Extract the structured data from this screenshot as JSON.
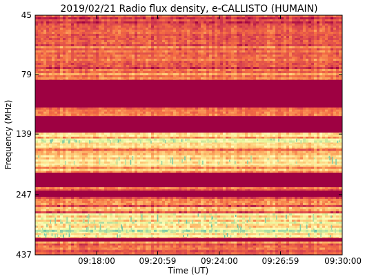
{
  "chart_data": {
    "type": "heatmap",
    "title": "2019/02/21  Radio flux density, e-CALLISTO (HUMAIN)",
    "xlabel": "Time (UT)",
    "ylabel": "Frequency (MHz)",
    "x_tick_labels": [
      "09:18:00",
      "09:20:59",
      "09:24:00",
      "09:26:59",
      "09:30:00"
    ],
    "x_tick_minutes": [
      18.0,
      20.983,
      24.0,
      26.983,
      30.0
    ],
    "xlim_minutes": [
      15.0,
      30.0
    ],
    "y_tick_labels": [
      "45",
      "79",
      "139",
      "247",
      "437"
    ],
    "y_tick_values": [
      45,
      79,
      139,
      247,
      437
    ],
    "ylim_mhz": [
      45,
      437
    ],
    "y_inverted": true,
    "y_scale": "log",
    "colormap": [
      "#9e0142",
      "#d53e4f",
      "#f46d43",
      "#fdae61",
      "#fee08b",
      "#ffffbf",
      "#e6f598",
      "#abdda4",
      "#66c2a5"
    ],
    "background_color": "#9e0142",
    "bands": [
      {
        "from_mhz": 45,
        "to_mhz": 78,
        "intensity": 0.22,
        "variability": 0.14
      },
      {
        "from_mhz": 78,
        "to_mhz": 83,
        "intensity": 0.28,
        "variability": 0.12
      },
      {
        "from_mhz": 83,
        "to_mhz": 108,
        "intensity": 0.0,
        "variability": 0.0
      },
      {
        "from_mhz": 108,
        "to_mhz": 117,
        "intensity": 0.18,
        "variability": 0.12
      },
      {
        "from_mhz": 117,
        "to_mhz": 137,
        "intensity": 0.0,
        "variability": 0.0
      },
      {
        "from_mhz": 137,
        "to_mhz": 145,
        "intensity": 0.45,
        "variability": 0.18
      },
      {
        "from_mhz": 145,
        "to_mhz": 152,
        "intensity": 0.62,
        "variability": 0.16
      },
      {
        "from_mhz": 152,
        "to_mhz": 160,
        "intensity": 0.42,
        "variability": 0.15
      },
      {
        "from_mhz": 160,
        "to_mhz": 170,
        "intensity": 0.3,
        "variability": 0.14
      },
      {
        "from_mhz": 170,
        "to_mhz": 186,
        "intensity": 0.55,
        "variability": 0.16
      },
      {
        "from_mhz": 186,
        "to_mhz": 200,
        "intensity": 0.35,
        "variability": 0.14
      },
      {
        "from_mhz": 200,
        "to_mhz": 230,
        "intensity": 0.0,
        "variability": 0.0
      },
      {
        "from_mhz": 230,
        "to_mhz": 237,
        "intensity": 0.22,
        "variability": 0.12
      },
      {
        "from_mhz": 237,
        "to_mhz": 252,
        "intensity": 0.0,
        "variability": 0.0
      },
      {
        "from_mhz": 252,
        "to_mhz": 262,
        "intensity": 0.24,
        "variability": 0.12
      },
      {
        "from_mhz": 262,
        "to_mhz": 295,
        "intensity": 0.3,
        "variability": 0.16
      },
      {
        "from_mhz": 295,
        "to_mhz": 325,
        "intensity": 0.58,
        "variability": 0.2
      },
      {
        "from_mhz": 325,
        "to_mhz": 355,
        "intensity": 0.66,
        "variability": 0.2
      },
      {
        "from_mhz": 355,
        "to_mhz": 372,
        "intensity": 0.5,
        "variability": 0.16
      },
      {
        "from_mhz": 372,
        "to_mhz": 385,
        "intensity": 0.0,
        "variability": 0.0
      },
      {
        "from_mhz": 385,
        "to_mhz": 400,
        "intensity": 0.3,
        "variability": 0.14
      },
      {
        "from_mhz": 400,
        "to_mhz": 418,
        "intensity": 0.36,
        "variability": 0.15
      },
      {
        "from_mhz": 418,
        "to_mhz": 437,
        "intensity": 0.14,
        "variability": 0.1
      }
    ]
  }
}
